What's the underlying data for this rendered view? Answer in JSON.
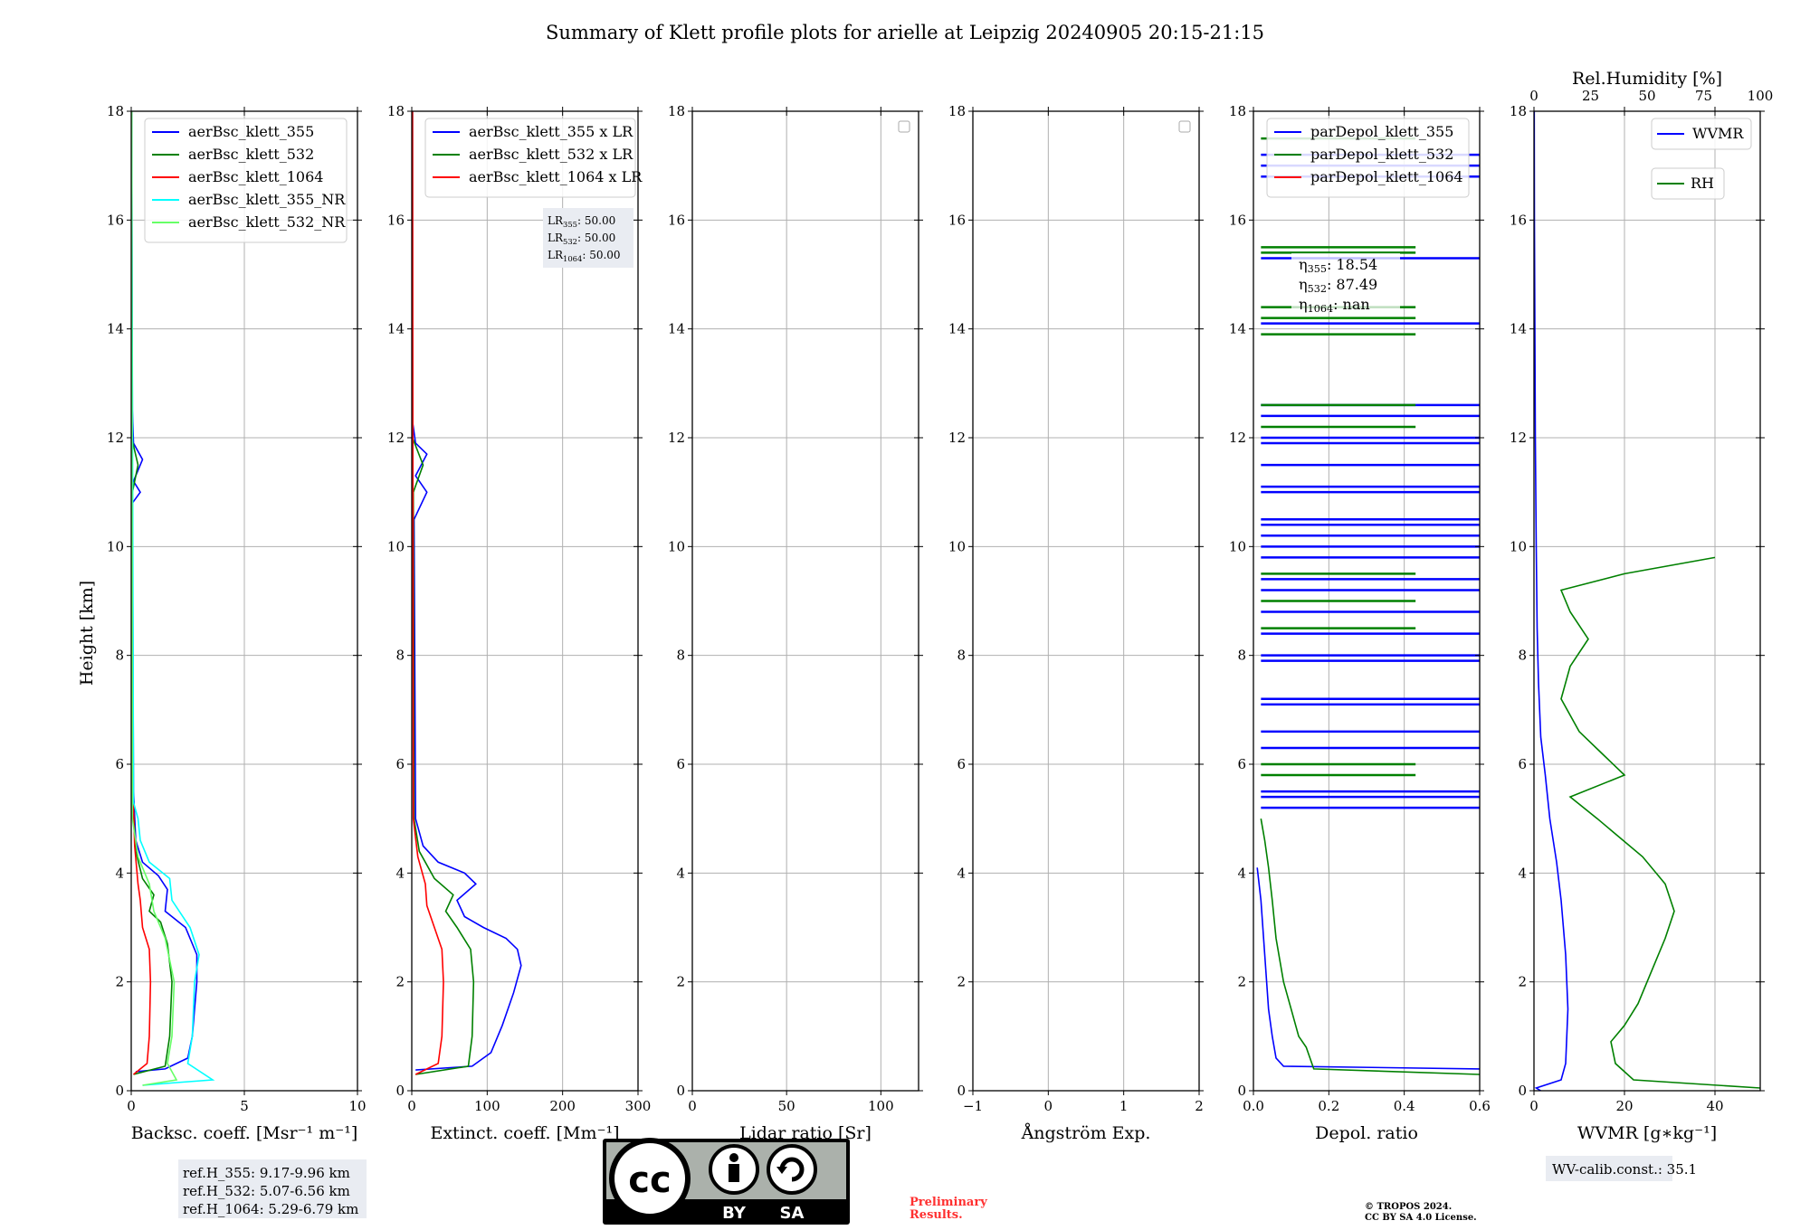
{
  "title": "Summary of Klett profile plots for arielle at Leipzig 20240905 20:15-21:15",
  "ylabel": "Height [km]",
  "y_ticks": [
    "0",
    "2",
    "4",
    "6",
    "8",
    "10",
    "12",
    "14",
    "16",
    "18"
  ],
  "colors": {
    "blue": "#0000ff",
    "green": "#008000",
    "red": "#ff0000",
    "cyan": "#00ffff",
    "lightgreen": "#66ff66"
  },
  "chart_data": [
    {
      "type": "line",
      "id": "bsc",
      "xlabel": "Backsc. coeff. [Msr⁻¹ m⁻¹]",
      "xlim": [
        0,
        10
      ],
      "ylim": [
        0,
        18
      ],
      "x_ticks": [
        {
          "v": 0,
          "t": "0"
        },
        {
          "v": 5,
          "t": "5"
        },
        {
          "v": 10,
          "t": "10"
        }
      ],
      "legend": [
        "aerBsc_klett_355",
        "aerBsc_klett_532",
        "aerBsc_klett_1064",
        "aerBsc_klett_355_NR",
        "aerBsc_klett_532_NR"
      ],
      "series": [
        {
          "name": "aerBsc_klett_355",
          "color": "blue",
          "points": [
            [
              0.2,
              0.35
            ],
            [
              1.5,
              0.4
            ],
            [
              2.5,
              0.6
            ],
            [
              2.7,
              1.0
            ],
            [
              2.8,
              1.5
            ],
            [
              2.9,
              2.0
            ],
            [
              2.9,
              2.5
            ],
            [
              2.4,
              3.0
            ],
            [
              1.5,
              3.3
            ],
            [
              1.6,
              3.7
            ],
            [
              1.2,
              3.95
            ],
            [
              0.5,
              4.2
            ],
            [
              0.2,
              4.6
            ],
            [
              0.1,
              5.5
            ],
            [
              0.05,
              10.8
            ],
            [
              0.4,
              11.0
            ],
            [
              0.1,
              11.2
            ],
            [
              0.5,
              11.6
            ],
            [
              0.1,
              11.9
            ],
            [
              0.05,
              12.5
            ],
            [
              0.02,
              18
            ]
          ]
        },
        {
          "name": "aerBsc_klett_532",
          "color": "green",
          "points": [
            [
              0.1,
              0.3
            ],
            [
              1.5,
              0.45
            ],
            [
              1.7,
              1.0
            ],
            [
              1.8,
              2.0
            ],
            [
              1.6,
              2.7
            ],
            [
              1.3,
              3.1
            ],
            [
              0.8,
              3.3
            ],
            [
              1.0,
              3.6
            ],
            [
              0.5,
              3.9
            ],
            [
              0.2,
              4.4
            ],
            [
              0.05,
              5.5
            ],
            [
              0.05,
              11.0
            ],
            [
              0.3,
              11.5
            ],
            [
              0.02,
              12
            ],
            [
              0.02,
              18
            ]
          ]
        },
        {
          "name": "aerBsc_klett_1064",
          "color": "red",
          "points": [
            [
              0.1,
              0.3
            ],
            [
              0.7,
              0.5
            ],
            [
              0.8,
              1.0
            ],
            [
              0.85,
              2.0
            ],
            [
              0.8,
              2.6
            ],
            [
              0.5,
              3.0
            ],
            [
              0.4,
              3.5
            ],
            [
              0.3,
              3.8
            ],
            [
              0.15,
              4.5
            ],
            [
              0.03,
              6
            ],
            [
              0.02,
              18
            ]
          ]
        },
        {
          "name": "aerBsc_klett_355_NR",
          "color": "cyan",
          "points": [
            [
              0.5,
              0.1
            ],
            [
              2.0,
              0.15
            ],
            [
              3.6,
              0.2
            ],
            [
              2.5,
              0.5
            ],
            [
              2.7,
              1.0
            ],
            [
              2.8,
              2.0
            ],
            [
              3.0,
              2.5
            ],
            [
              2.6,
              3.0
            ],
            [
              1.8,
              3.5
            ],
            [
              1.7,
              3.9
            ],
            [
              0.8,
              4.2
            ],
            [
              0.4,
              4.6
            ],
            [
              0.3,
              5.0
            ],
            [
              0.1,
              5.3
            ],
            [
              0.02,
              18
            ]
          ]
        },
        {
          "name": "aerBsc_klett_532_NR",
          "color": "lightgreen",
          "points": [
            [
              0.5,
              0.1
            ],
            [
              2.0,
              0.2
            ],
            [
              1.6,
              0.5
            ],
            [
              1.8,
              1.0
            ],
            [
              1.9,
              2.0
            ],
            [
              1.5,
              2.8
            ],
            [
              1.0,
              3.3
            ],
            [
              0.8,
              3.8
            ],
            [
              0.3,
              4.3
            ],
            [
              0.05,
              5.0
            ],
            [
              0.02,
              18
            ]
          ]
        }
      ],
      "note": [
        "ref.H_355: 9.17-9.96 km",
        "ref.H_532: 5.07-6.56 km",
        "ref.H_1064: 5.29-6.79 km"
      ]
    },
    {
      "type": "line",
      "id": "ext",
      "xlabel": "Extinct. coeff. [Mm⁻¹]",
      "xlim": [
        0,
        300
      ],
      "ylim": [
        0,
        18
      ],
      "x_ticks": [
        {
          "v": 0,
          "t": "0"
        },
        {
          "v": 100,
          "t": "100"
        },
        {
          "v": 200,
          "t": "200"
        },
        {
          "v": 300,
          "t": "300"
        }
      ],
      "legend": [
        "aerBsc_klett_355 x LR",
        "aerBsc_klett_532 x LR",
        "aerBsc_klett_1064 x LR"
      ],
      "lr_labels": [
        {
          "base": "LR",
          "sub": "355",
          "val": ": 50.00"
        },
        {
          "base": "LR",
          "sub": "532",
          "val": ": 50.00"
        },
        {
          "base": "LR",
          "sub": "1064",
          "val": ": 50.00"
        }
      ],
      "series": [
        {
          "name": "aerBsc_klett_355 x LR",
          "color": "blue",
          "points": [
            [
              5,
              0.38
            ],
            [
              80,
              0.45
            ],
            [
              105,
              0.7
            ],
            [
              120,
              1.2
            ],
            [
              135,
              1.8
            ],
            [
              145,
              2.3
            ],
            [
              140,
              2.6
            ],
            [
              125,
              2.8
            ],
            [
              95,
              3.0
            ],
            [
              70,
              3.2
            ],
            [
              60,
              3.5
            ],
            [
              85,
              3.8
            ],
            [
              70,
              4.0
            ],
            [
              35,
              4.2
            ],
            [
              15,
              4.5
            ],
            [
              5,
              5.0
            ],
            [
              3,
              10.5
            ],
            [
              20,
              11.0
            ],
            [
              5,
              11.3
            ],
            [
              20,
              11.7
            ],
            [
              5,
              11.9
            ],
            [
              1,
              12.3
            ],
            [
              1,
              18
            ]
          ]
        },
        {
          "name": "aerBsc_klett_532 x LR",
          "color": "green",
          "points": [
            [
              5,
              0.3
            ],
            [
              75,
              0.45
            ],
            [
              80,
              1.0
            ],
            [
              82,
              2.0
            ],
            [
              78,
              2.6
            ],
            [
              60,
              3.0
            ],
            [
              45,
              3.3
            ],
            [
              55,
              3.6
            ],
            [
              30,
              3.9
            ],
            [
              10,
              4.4
            ],
            [
              3,
              5.0
            ],
            [
              2,
              11.0
            ],
            [
              15,
              11.5
            ],
            [
              1,
              12
            ],
            [
              1,
              18
            ]
          ]
        },
        {
          "name": "aerBsc_klett_1064 x LR",
          "color": "red",
          "points": [
            [
              5,
              0.3
            ],
            [
              35,
              0.5
            ],
            [
              40,
              1.0
            ],
            [
              42,
              2.0
            ],
            [
              40,
              2.6
            ],
            [
              30,
              3.0
            ],
            [
              20,
              3.4
            ],
            [
              18,
              3.8
            ],
            [
              8,
              4.3
            ],
            [
              2,
              5.0
            ],
            [
              1,
              18
            ]
          ]
        }
      ]
    },
    {
      "type": "line",
      "id": "lr",
      "xlabel": "Lidar ratio [Sr]",
      "xlim": [
        0,
        120
      ],
      "ylim": [
        0,
        18
      ],
      "x_ticks": [
        {
          "v": 0,
          "t": "0"
        },
        {
          "v": 50,
          "t": "50"
        },
        {
          "v": 100,
          "t": "100"
        }
      ],
      "series": []
    },
    {
      "type": "line",
      "id": "ang",
      "xlabel": "Ångström Exp.",
      "xlim": [
        -1,
        2
      ],
      "ylim": [
        0,
        18
      ],
      "x_ticks": [
        {
          "v": -1,
          "t": "−1"
        },
        {
          "v": 0,
          "t": "0"
        },
        {
          "v": 1,
          "t": "1"
        },
        {
          "v": 2,
          "t": "2"
        }
      ],
      "series": []
    },
    {
      "type": "line",
      "id": "depol",
      "xlabel": "Depol. ratio",
      "xlim": [
        0,
        0.6
      ],
      "ylim": [
        0,
        18
      ],
      "x_ticks": [
        {
          "v": 0,
          "t": "0.0"
        },
        {
          "v": 0.2,
          "t": "0.2"
        },
        {
          "v": 0.4,
          "t": "0.4"
        },
        {
          "v": 0.6,
          "t": "0.6"
        }
      ],
      "legend": [
        "parDepol_klett_355",
        "parDepol_klett_532",
        "parDepol_klett_1064"
      ],
      "eta_labels": [
        {
          "base": "η",
          "sub": "355",
          "val": ": 18.54"
        },
        {
          "base": "η",
          "sub": "532",
          "val": ": 87.49"
        },
        {
          "base": "η",
          "sub": "1064",
          "val": ": nan"
        }
      ],
      "series": [
        {
          "name": "parDepol_klett_355",
          "color": "blue",
          "points": [
            [
              0.01,
              4.1
            ],
            [
              0.02,
              3.5
            ],
            [
              0.03,
              2.5
            ],
            [
              0.04,
              1.5
            ],
            [
              0.05,
              1.0
            ],
            [
              0.06,
              0.6
            ],
            [
              0.08,
              0.45
            ],
            [
              0.6,
              0.4
            ]
          ]
        },
        {
          "name": "parDepol_klett_532",
          "color": "green",
          "points": [
            [
              0.6,
              0.3
            ],
            [
              0.16,
              0.4
            ],
            [
              0.14,
              0.8
            ],
            [
              0.12,
              1.0
            ],
            [
              0.1,
              1.5
            ],
            [
              0.08,
              2.0
            ],
            [
              0.06,
              2.8
            ],
            [
              0.05,
              3.5
            ],
            [
              0.04,
              4.1
            ],
            [
              0.03,
              4.6
            ],
            [
              0.02,
              5.0
            ]
          ]
        }
      ],
      "spikes": [
        {
          "color": "blue",
          "x": 0.6,
          "heights": [
            5.2,
            5.4,
            5.5,
            6.3,
            6.6,
            7.1,
            7.2,
            7.9,
            8.0,
            8.4,
            8.8,
            9.2,
            9.4,
            9.8,
            10.0,
            10.2,
            10.4,
            10.5,
            11.0,
            11.1,
            11.5,
            11.9,
            12.0,
            12.4,
            12.6,
            14.1,
            15.3,
            16.8,
            17.0,
            17.2
          ]
        },
        {
          "color": "green",
          "x": 0.43,
          "heights": [
            5.8,
            6.0,
            8.5,
            9.0,
            9.5,
            12.2,
            12.6,
            13.9,
            14.2,
            14.4,
            15.4,
            15.5,
            17.5
          ]
        }
      ]
    },
    {
      "type": "line",
      "id": "wv",
      "xlabel": "WVMR [g∗kg⁻¹]",
      "x2label": "Rel.Humidity [%]",
      "xlim": [
        0,
        50
      ],
      "ylim": [
        0,
        18
      ],
      "x2lim": [
        0,
        100
      ],
      "x_ticks": [
        {
          "v": 0,
          "t": "0"
        },
        {
          "v": 20,
          "t": "20"
        },
        {
          "v": 40,
          "t": "40"
        }
      ],
      "x2_ticks": [
        {
          "v": 0,
          "t": "0"
        },
        {
          "v": 25,
          "t": "25"
        },
        {
          "v": 50,
          "t": "50"
        },
        {
          "v": 75,
          "t": "75"
        },
        {
          "v": 100,
          "t": "100"
        }
      ],
      "legend": [
        "WVMR",
        "RH"
      ],
      "series": [
        {
          "name": "WVMR",
          "color": "blue",
          "points": [
            [
              1.5,
              0.0
            ],
            [
              0.5,
              0.05
            ],
            [
              6,
              0.2
            ],
            [
              7,
              0.5
            ],
            [
              7.5,
              1.5
            ],
            [
              7,
              2.5
            ],
            [
              6,
              3.5
            ],
            [
              5,
              4.2
            ],
            [
              3.5,
              5.0
            ],
            [
              2.5,
              5.8
            ],
            [
              1.5,
              6.5
            ],
            [
              1,
              7.5
            ],
            [
              0.7,
              8.5
            ],
            [
              0.5,
              10
            ],
            [
              0.3,
              12
            ],
            [
              0.2,
              14
            ],
            [
              0.1,
              16
            ],
            [
              0.05,
              18
            ]
          ]
        },
        {
          "name": "RH",
          "color": "green",
          "points": [
            [
              50,
              0.05
            ],
            [
              22,
              0.2
            ],
            [
              18,
              0.5
            ],
            [
              17,
              0.9
            ],
            [
              20,
              1.2
            ],
            [
              23,
              1.6
            ],
            [
              26,
              2.2
            ],
            [
              29,
              2.8
            ],
            [
              31,
              3.3
            ],
            [
              29,
              3.8
            ],
            [
              24,
              4.3
            ],
            [
              14,
              5.0
            ],
            [
              8,
              5.4
            ],
            [
              20,
              5.8
            ],
            [
              15,
              6.2
            ],
            [
              10,
              6.6
            ],
            [
              6,
              7.2
            ],
            [
              8,
              7.8
            ],
            [
              12,
              8.3
            ],
            [
              8,
              8.8
            ],
            [
              6,
              9.2
            ],
            [
              20,
              9.5
            ],
            [
              40,
              9.8
            ]
          ]
        }
      ],
      "note": "WV-calib.const.: 35.1"
    }
  ],
  "footer": {
    "license_by": "BY",
    "license_sa": "SA",
    "license_cc": "cc",
    "preliminary_1": "Preliminary",
    "preliminary_2": "Results.",
    "copyright_1": "© TROPOS 2024.",
    "copyright_2": "CC BY SA 4.0 License."
  }
}
